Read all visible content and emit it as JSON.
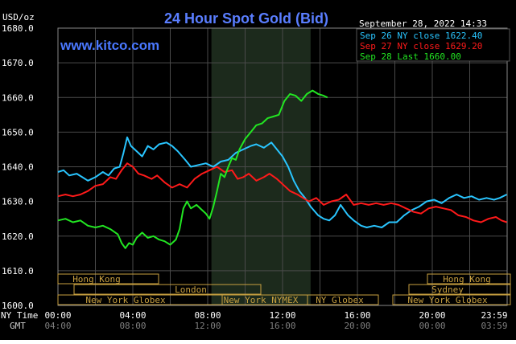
{
  "header": {
    "unit": "USD/oz",
    "title": "24 Hour Spot Gold (Bid)",
    "datetime": "September 28, 2022 14:33",
    "watermark": "www.kitco.com"
  },
  "legend": [
    {
      "label": "Sep 26 NY close 1622.40",
      "color": "#29c5ff"
    },
    {
      "label": "Sep 27 NY close 1629.20",
      "color": "#ff1a1a"
    },
    {
      "label": "Sep 28 Last 1660.00",
      "color": "#22e622"
    }
  ],
  "axis_labels": {
    "ny_time": "NY Time",
    "gmt": "GMT"
  },
  "sessions": {
    "hong_kong_left": "Hong Kong",
    "london": "London",
    "new_york_globex_left": "New York Globex",
    "new_york_nymex": "New York NYMEX",
    "ny_globex": "NY Globex",
    "hong_kong_right": "Hong Kong",
    "sydney": "Sydney",
    "new_york_globex_right": "New York Globex"
  },
  "chart_data": {
    "type": "line",
    "title": "24 Hour Spot Gold (Bid)",
    "ylabel": "USD/oz",
    "ylim": [
      1600,
      1680
    ],
    "xlim": [
      0,
      24
    ],
    "yticks": [
      "1600.0",
      "1610.0",
      "1620.0",
      "1630.0",
      "1640.0",
      "1650.0",
      "1660.0",
      "1670.0",
      "1680.0"
    ],
    "xticks_ny": [
      "00:00",
      "04:00",
      "08:00",
      "12:00",
      "16:00",
      "20:00",
      "23:59"
    ],
    "xticks_gmt": [
      "04:00",
      "08:00",
      "12:00",
      "16:00",
      "20:00",
      "00:00",
      "03:59"
    ],
    "shaded_range": [
      8.2,
      13.5
    ],
    "grid": true,
    "legend_position": "top-right",
    "series": [
      {
        "name": "Sep 26 NY close 1622.40",
        "color": "#29c5ff",
        "points": [
          [
            0,
            1638.5
          ],
          [
            0.3,
            1639
          ],
          [
            0.6,
            1637.5
          ],
          [
            1,
            1638
          ],
          [
            1.3,
            1637
          ],
          [
            1.6,
            1636
          ],
          [
            2,
            1637
          ],
          [
            2.4,
            1638.5
          ],
          [
            2.7,
            1637.5
          ],
          [
            3,
            1639.5
          ],
          [
            3.3,
            1640
          ],
          [
            3.5,
            1644
          ],
          [
            3.7,
            1648.5
          ],
          [
            3.9,
            1646
          ],
          [
            4.2,
            1644.5
          ],
          [
            4.5,
            1643
          ],
          [
            4.8,
            1646
          ],
          [
            5.1,
            1645
          ],
          [
            5.4,
            1646.5
          ],
          [
            5.8,
            1647
          ],
          [
            6.1,
            1646
          ],
          [
            6.4,
            1644.5
          ],
          [
            6.8,
            1642
          ],
          [
            7.1,
            1640
          ],
          [
            7.5,
            1640.5
          ],
          [
            7.9,
            1641
          ],
          [
            8.3,
            1640
          ],
          [
            8.7,
            1641.5
          ],
          [
            9.1,
            1642
          ],
          [
            9.5,
            1644
          ],
          [
            9.9,
            1645
          ],
          [
            10.3,
            1646
          ],
          [
            10.6,
            1646.5
          ],
          [
            11,
            1645.5
          ],
          [
            11.4,
            1647
          ],
          [
            11.7,
            1645
          ],
          [
            12,
            1643
          ],
          [
            12.3,
            1640
          ],
          [
            12.6,
            1636
          ],
          [
            12.9,
            1633
          ],
          [
            13.2,
            1631
          ],
          [
            13.5,
            1628.5
          ],
          [
            13.9,
            1626
          ],
          [
            14.2,
            1625
          ],
          [
            14.5,
            1624.5
          ],
          [
            14.8,
            1626
          ],
          [
            15.1,
            1629
          ],
          [
            15.5,
            1626
          ],
          [
            15.8,
            1624.5
          ],
          [
            16.2,
            1623
          ],
          [
            16.5,
            1622.5
          ],
          [
            16.9,
            1623
          ],
          [
            17.3,
            1622.5
          ],
          [
            17.7,
            1624
          ],
          [
            18.1,
            1624
          ],
          [
            18.5,
            1626
          ],
          [
            18.9,
            1627.5
          ],
          [
            19.3,
            1628.5
          ],
          [
            19.7,
            1630
          ],
          [
            20.1,
            1630.5
          ],
          [
            20.5,
            1629.5
          ],
          [
            20.9,
            1631
          ],
          [
            21.3,
            1632
          ],
          [
            21.7,
            1631
          ],
          [
            22.1,
            1631.5
          ],
          [
            22.5,
            1630.5
          ],
          [
            22.9,
            1631
          ],
          [
            23.3,
            1630.5
          ],
          [
            23.6,
            1631
          ],
          [
            23.98,
            1632
          ]
        ]
      },
      {
        "name": "Sep 27 NY close 1629.20",
        "color": "#ff1a1a",
        "points": [
          [
            0,
            1631.5
          ],
          [
            0.4,
            1632
          ],
          [
            0.8,
            1631.5
          ],
          [
            1.2,
            1632
          ],
          [
            1.6,
            1633
          ],
          [
            2,
            1634.5
          ],
          [
            2.4,
            1635
          ],
          [
            2.8,
            1637
          ],
          [
            3.1,
            1636.5
          ],
          [
            3.4,
            1639
          ],
          [
            3.7,
            1641
          ],
          [
            4,
            1640
          ],
          [
            4.3,
            1638
          ],
          [
            4.6,
            1637.5
          ],
          [
            5,
            1636.5
          ],
          [
            5.3,
            1637.5
          ],
          [
            5.7,
            1635.5
          ],
          [
            6.1,
            1634
          ],
          [
            6.5,
            1635
          ],
          [
            6.9,
            1634
          ],
          [
            7.3,
            1636.5
          ],
          [
            7.7,
            1638
          ],
          [
            8.1,
            1639
          ],
          [
            8.5,
            1640
          ],
          [
            8.9,
            1638.5
          ],
          [
            9.3,
            1639
          ],
          [
            9.6,
            1636.5
          ],
          [
            9.9,
            1637
          ],
          [
            10.2,
            1638
          ],
          [
            10.6,
            1636
          ],
          [
            11,
            1637
          ],
          [
            11.3,
            1638
          ],
          [
            11.7,
            1636.5
          ],
          [
            12.1,
            1634.5
          ],
          [
            12.4,
            1633
          ],
          [
            12.8,
            1632
          ],
          [
            13.1,
            1631
          ],
          [
            13.4,
            1630
          ],
          [
            13.8,
            1631
          ],
          [
            14.2,
            1629
          ],
          [
            14.6,
            1630
          ],
          [
            15,
            1630.5
          ],
          [
            15.4,
            1632
          ],
          [
            15.8,
            1629
          ],
          [
            16.2,
            1629.5
          ],
          [
            16.6,
            1629
          ],
          [
            17,
            1629.5
          ],
          [
            17.4,
            1629
          ],
          [
            17.8,
            1629.5
          ],
          [
            18.2,
            1629
          ],
          [
            18.6,
            1628
          ],
          [
            19,
            1627
          ],
          [
            19.4,
            1626.5
          ],
          [
            19.8,
            1628
          ],
          [
            20.2,
            1628.5
          ],
          [
            20.6,
            1628
          ],
          [
            21,
            1627.5
          ],
          [
            21.4,
            1626
          ],
          [
            21.8,
            1625.5
          ],
          [
            22.2,
            1624.5
          ],
          [
            22.6,
            1624
          ],
          [
            23,
            1625
          ],
          [
            23.4,
            1625.5
          ],
          [
            23.7,
            1624.5
          ],
          [
            23.98,
            1624
          ]
        ]
      },
      {
        "name": "Sep 28 Last 1660.00",
        "color": "#22e622",
        "points": [
          [
            0,
            1624.5
          ],
          [
            0.4,
            1625
          ],
          [
            0.8,
            1624
          ],
          [
            1.2,
            1624.5
          ],
          [
            1.6,
            1623
          ],
          [
            2,
            1622.5
          ],
          [
            2.4,
            1623
          ],
          [
            2.8,
            1622
          ],
          [
            3.2,
            1620.5
          ],
          [
            3.4,
            1618
          ],
          [
            3.6,
            1616.5
          ],
          [
            3.8,
            1618
          ],
          [
            4,
            1617.5
          ],
          [
            4.2,
            1619.5
          ],
          [
            4.5,
            1621
          ],
          [
            4.8,
            1619.5
          ],
          [
            5.1,
            1620
          ],
          [
            5.4,
            1619
          ],
          [
            5.7,
            1618.5
          ],
          [
            6,
            1617.5
          ],
          [
            6.3,
            1619
          ],
          [
            6.5,
            1622
          ],
          [
            6.7,
            1628
          ],
          [
            6.9,
            1630
          ],
          [
            7.1,
            1628
          ],
          [
            7.4,
            1629
          ],
          [
            7.7,
            1627.5
          ],
          [
            7.9,
            1626.5
          ],
          [
            8.1,
            1625
          ],
          [
            8.3,
            1628.5
          ],
          [
            8.5,
            1633
          ],
          [
            8.7,
            1638
          ],
          [
            8.9,
            1637
          ],
          [
            9.1,
            1640
          ],
          [
            9.3,
            1642.5
          ],
          [
            9.5,
            1642
          ],
          [
            9.7,
            1645
          ],
          [
            10,
            1648
          ],
          [
            10.3,
            1650
          ],
          [
            10.6,
            1652
          ],
          [
            10.9,
            1652.5
          ],
          [
            11.2,
            1654
          ],
          [
            11.5,
            1654.5
          ],
          [
            11.8,
            1655
          ],
          [
            12.1,
            1659
          ],
          [
            12.4,
            1661
          ],
          [
            12.7,
            1660.5
          ],
          [
            13,
            1659
          ],
          [
            13.3,
            1661
          ],
          [
            13.6,
            1662
          ],
          [
            13.9,
            1661
          ],
          [
            14.2,
            1660.5
          ],
          [
            14.4,
            1660
          ]
        ]
      }
    ]
  }
}
